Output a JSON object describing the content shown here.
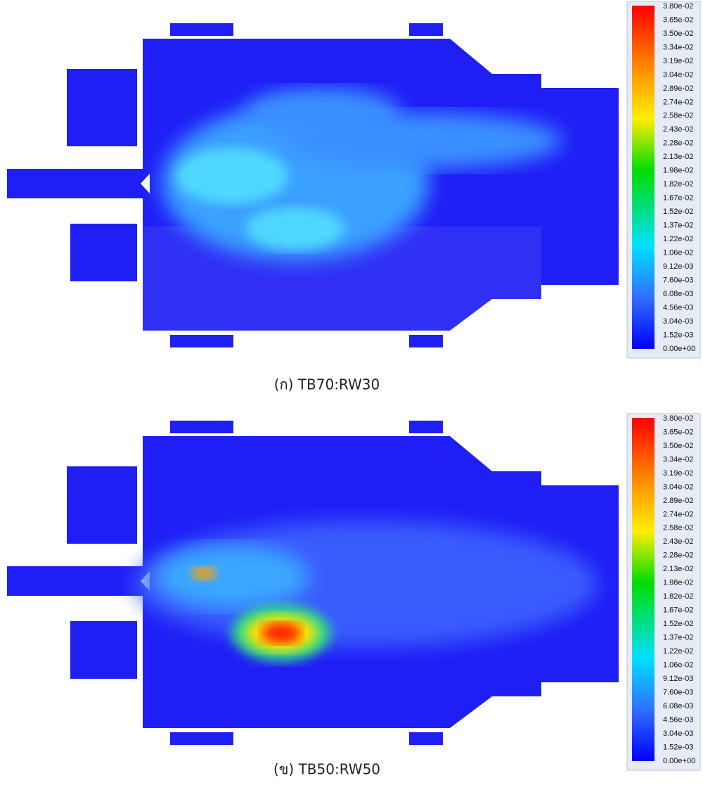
{
  "figures": [
    {
      "caption": "(ก) TB70:RW30",
      "colorbar": {
        "labels": [
          "3.80e-02",
          "3.65e-02",
          "3.50e-02",
          "3.34e-02",
          "3.19e-02",
          "3.04e-02",
          "2.89e-02",
          "2.74e-02",
          "2.58e-02",
          "2.43e-02",
          "2.28e-02",
          "2.13e-02",
          "1.98e-02",
          "1.82e-02",
          "1.67e-02",
          "1.52e-02",
          "1.37e-02",
          "1.22e-02",
          "1.06e-02",
          "9.12e-03",
          "7.60e-03",
          "6.08e-03",
          "4.56e-03",
          "3.04e-03",
          "1.52e-03",
          "0.00e+00"
        ]
      }
    },
    {
      "caption": "(ข) TB50:RW50",
      "colorbar": {
        "labels": [
          "3.80e-02",
          "3.65e-02",
          "3.50e-02",
          "3.34e-02",
          "3.19e-02",
          "3.04e-02",
          "2.89e-02",
          "2.74e-02",
          "2.58e-02",
          "2.43e-02",
          "2.28e-02",
          "2.13e-02",
          "1.98e-02",
          "1.82e-02",
          "1.67e-02",
          "1.52e-02",
          "1.37e-02",
          "1.22e-02",
          "1.06e-02",
          "9.12e-03",
          "7.60e-03",
          "6.08e-03",
          "4.56e-03",
          "3.04e-03",
          "1.52e-03",
          "0.00e+00"
        ]
      }
    }
  ]
}
